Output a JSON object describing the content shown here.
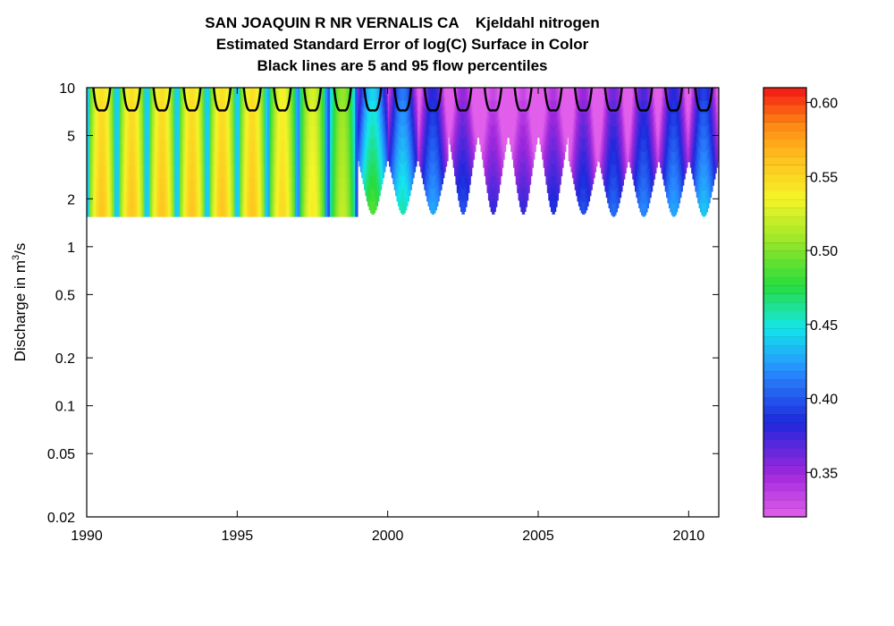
{
  "chart_data": {
    "type": "heatmap",
    "title_lines": [
      "SAN JOAQUIN R NR VERNALIS CA    Kjeldahl nitrogen",
      "Estimated Standard Error of log(C) Surface in Color",
      "Black lines are 5 and 95 flow percentiles"
    ],
    "xlabel": "",
    "ylabel_prefix": "Discharge in m",
    "ylabel_sup": "3",
    "ylabel_suffix": "/s",
    "x_range": [
      1990,
      2011
    ],
    "y_range": [
      0.02,
      10
    ],
    "y_scale": "log",
    "x_ticks": [
      1990,
      1995,
      2000,
      2005,
      2010
    ],
    "y_ticks": [
      {
        "value": 0.02,
        "label": "0.02"
      },
      {
        "value": 0.05,
        "label": "0.05"
      },
      {
        "value": 0.1,
        "label": "0.1"
      },
      {
        "value": 0.2,
        "label": "0.2"
      },
      {
        "value": 0.5,
        "label": "0.5"
      },
      {
        "value": 1,
        "label": "1"
      },
      {
        "value": 2,
        "label": "2"
      },
      {
        "value": 5,
        "label": "5"
      },
      {
        "value": 10,
        "label": "10"
      }
    ],
    "surface": {
      "q_min": 1.55,
      "q_max": 10,
      "bands": [
        {
          "year": 1990.5,
          "peak_se": 0.56,
          "q_min": 1.55
        },
        {
          "year": 1991.5,
          "peak_se": 0.56,
          "q_min": 1.55
        },
        {
          "year": 1992.5,
          "peak_se": 0.56,
          "q_min": 1.55
        },
        {
          "year": 1993.5,
          "peak_se": 0.56,
          "q_min": 1.55
        },
        {
          "year": 1994.5,
          "peak_se": 0.56,
          "q_min": 1.55
        },
        {
          "year": 1995.5,
          "peak_se": 0.56,
          "q_min": 1.55
        },
        {
          "year": 1996.5,
          "peak_se": 0.55,
          "q_min": 1.55
        },
        {
          "year": 1997.5,
          "peak_se": 0.54,
          "q_min": 1.55
        },
        {
          "year": 1998.5,
          "peak_se": 0.52,
          "q_min": 1.55
        },
        {
          "year": 1999.5,
          "peak_se": 0.49,
          "q_min": 1.6
        },
        {
          "year": 2000.5,
          "peak_se": 0.46,
          "q_min": 1.6
        },
        {
          "year": 2001.5,
          "peak_se": 0.43,
          "q_min": 1.6
        },
        {
          "year": 2002.5,
          "peak_se": 0.4,
          "q_min": 1.6
        },
        {
          "year": 2003.5,
          "peak_se": 0.38,
          "q_min": 1.6
        },
        {
          "year": 2004.5,
          "peak_se": 0.38,
          "q_min": 1.6
        },
        {
          "year": 2005.5,
          "peak_se": 0.39,
          "q_min": 1.6
        },
        {
          "year": 2006.5,
          "peak_se": 0.4,
          "q_min": 1.6
        },
        {
          "year": 2007.5,
          "peak_se": 0.41,
          "q_min": 1.55
        },
        {
          "year": 2008.5,
          "peak_se": 0.42,
          "q_min": 1.55
        },
        {
          "year": 2009.5,
          "peak_se": 0.43,
          "q_min": 1.55
        },
        {
          "year": 2010.5,
          "peak_se": 0.44,
          "q_min": 1.55
        }
      ]
    },
    "percentile_lines": {
      "label": "5 and 95 flow percentiles",
      "color": "#000000",
      "low_flow_dip": 7.2,
      "high_flow": 10
    },
    "colorbar": {
      "range": [
        0.32,
        0.61
      ],
      "ticks": [
        {
          "value": 0.35,
          "label": "0.35"
        },
        {
          "value": 0.4,
          "label": "0.40"
        },
        {
          "value": 0.45,
          "label": "0.45"
        },
        {
          "value": 0.5,
          "label": "0.50"
        },
        {
          "value": 0.55,
          "label": "0.55"
        },
        {
          "value": 0.6,
          "label": "0.60"
        }
      ],
      "levels": 50
    }
  }
}
